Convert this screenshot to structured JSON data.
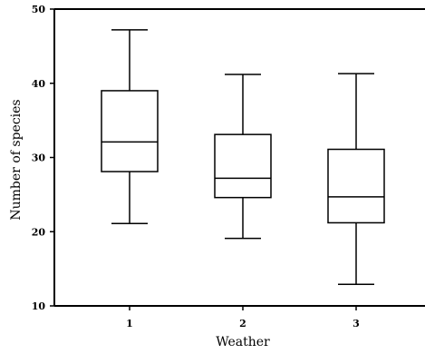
{
  "chart_data": {
    "type": "box",
    "title": "",
    "xlabel": "Weather",
    "ylabel": "Number of species",
    "ylim": [
      10,
      50
    ],
    "yticks": [
      10,
      20,
      30,
      40,
      50
    ],
    "categories": [
      "1",
      "2",
      "3"
    ],
    "boxes": [
      {
        "category": "1",
        "min": 21.1,
        "q1": 28.1,
        "median": 32.1,
        "q3": 39.0,
        "max": 47.2
      },
      {
        "category": "2",
        "min": 19.1,
        "q1": 24.6,
        "median": 27.2,
        "q3": 33.1,
        "max": 41.2
      },
      {
        "category": "3",
        "min": 12.9,
        "q1": 21.2,
        "median": 24.7,
        "q3": 31.1,
        "max": 41.3
      }
    ],
    "grid": false,
    "colors": {
      "stroke": "#000000",
      "fill": "#ffffff"
    }
  }
}
